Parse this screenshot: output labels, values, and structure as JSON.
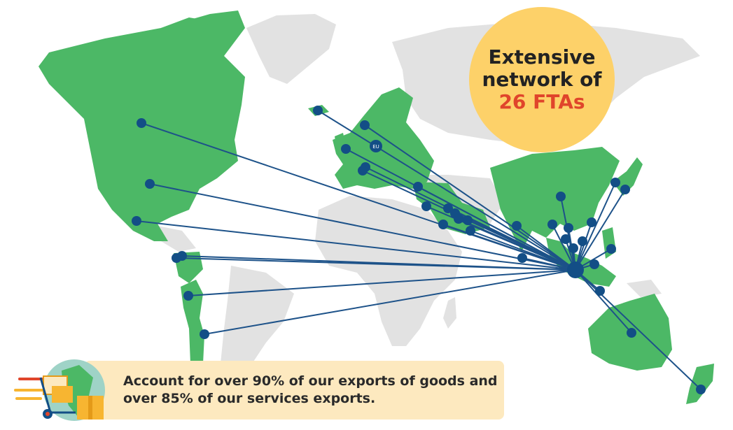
{
  "colors": {
    "fta_land": "#4cb866",
    "other_land": "#e2e2e2",
    "route_line": "#1d5289",
    "node": "#134e86",
    "bubble": "#fdd169",
    "highlight": "#e0452b",
    "banner": "#fde9bf"
  },
  "headline": {
    "line1": "Extensive",
    "line2": "network of",
    "line3": "26 FTAs"
  },
  "banner": {
    "line1": "Account for over 90% of our exports of goods and",
    "line2": "over 85% of our services exports."
  },
  "map_label": "EU",
  "icons": [
    "delivery-trolley-icon",
    "globe-icon",
    "parcel-icon"
  ]
}
